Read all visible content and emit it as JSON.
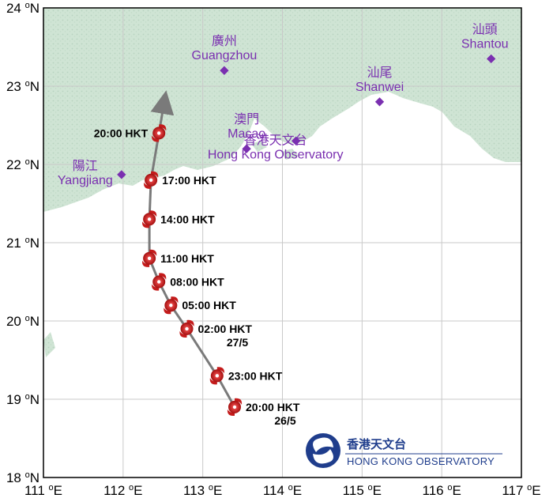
{
  "map": {
    "lon_min": 111,
    "lon_max": 117,
    "lat_min": 18,
    "lat_max": 24,
    "x_ticks": [
      111,
      112,
      113,
      114,
      115,
      116,
      117
    ],
    "y_ticks": [
      18,
      19,
      20,
      21,
      22,
      23,
      24
    ],
    "x_tick_suffix": "E",
    "y_tick_suffix": "N",
    "degree_sup": "o",
    "colors": {
      "sea": "#ffffff",
      "land": "#cfe4d4",
      "grid": "#c9c9c9",
      "frame": "#000000",
      "track": "#7a7a7a",
      "storm": "#c41b1b",
      "city": "#7a2fb0",
      "logo": "#1f3d8c"
    }
  },
  "cities": [
    {
      "name_zh": "廣州",
      "name_en": "Guangzhou",
      "lon": 113.27,
      "lat": 23.2
    },
    {
      "name_zh": "汕頭",
      "name_en": "Shantou",
      "lon": 116.62,
      "lat": 23.35
    },
    {
      "name_zh": "汕尾",
      "name_en": "Shanwei",
      "lon": 115.22,
      "lat": 22.8
    },
    {
      "name_zh": "澳門",
      "name_en": "Macao",
      "lon": 113.55,
      "lat": 22.2
    },
    {
      "name_zh": "香港天文台",
      "name_en": "Hong Kong Observatory",
      "lon": 114.17,
      "lat": 22.3
    },
    {
      "name_zh": "陽江",
      "name_en": "Yangjiang",
      "lon": 111.98,
      "lat": 21.87
    }
  ],
  "track": [
    {
      "time": "20:00 HKT",
      "date": "26/5",
      "lon": 113.4,
      "lat": 18.9
    },
    {
      "time": "23:00 HKT",
      "date": "",
      "lon": 113.18,
      "lat": 19.3
    },
    {
      "time": "02:00 HKT",
      "date": "27/5",
      "lon": 112.8,
      "lat": 19.9
    },
    {
      "time": "05:00 HKT",
      "date": "",
      "lon": 112.6,
      "lat": 20.2
    },
    {
      "time": "08:00 HKT",
      "date": "",
      "lon": 112.45,
      "lat": 20.5
    },
    {
      "time": "11:00 HKT",
      "date": "",
      "lon": 112.33,
      "lat": 20.8
    },
    {
      "time": "14:00 HKT",
      "date": "",
      "lon": 112.33,
      "lat": 21.3
    },
    {
      "time": "17:00 HKT",
      "date": "",
      "lon": 112.35,
      "lat": 21.8
    },
    {
      "time": "20:00 HKT",
      "date": "",
      "lon": 112.45,
      "lat": 22.4
    }
  ],
  "logo": {
    "name_zh": "香港天文台",
    "name_en": "HONG KONG OBSERVATORY"
  }
}
